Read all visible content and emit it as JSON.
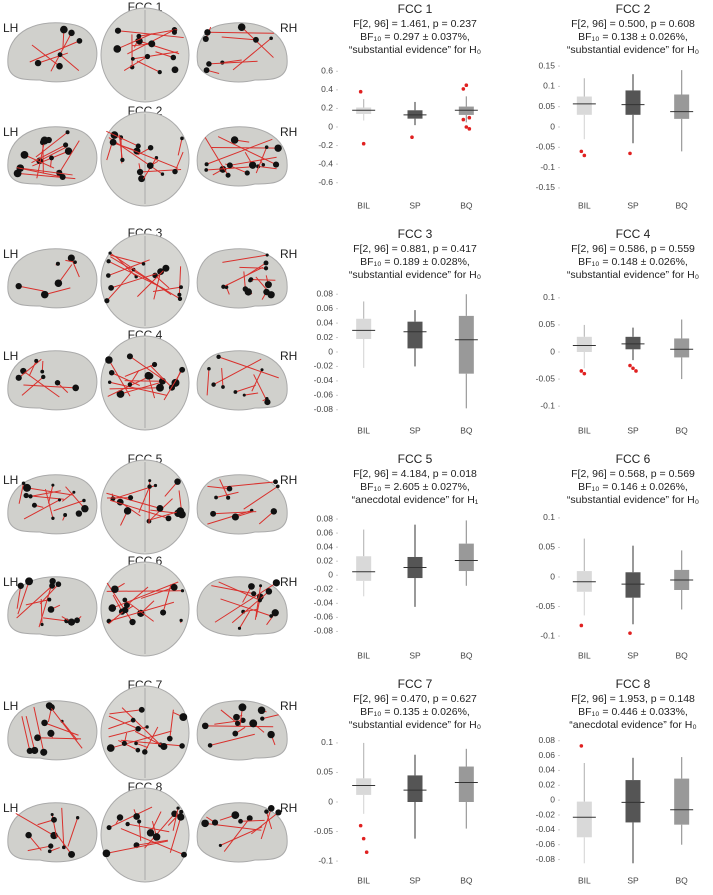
{
  "brain_panels": [
    {
      "title": "FCC 1",
      "left": "LH",
      "right": "RH"
    },
    {
      "title": "FCC 2",
      "left": "LH",
      "right": "RH"
    },
    {
      "title": "FCC 3",
      "left": "LH",
      "right": "RH"
    },
    {
      "title": "FCC 4",
      "left": "LH",
      "right": "RH"
    },
    {
      "title": "FCC 5",
      "left": "LH",
      "right": "RH"
    },
    {
      "title": "FCC 6",
      "left": "LH",
      "right": "RH"
    },
    {
      "title": "FCC 7",
      "left": "LH",
      "right": "RH"
    },
    {
      "title": "FCC 8",
      "left": "LH",
      "right": "RH"
    }
  ],
  "chart_data": [
    {
      "type": "box",
      "title": "FCC 1",
      "subtitle": [
        "F[2, 96] = 1.461, p = 0.237",
        "BF₁₀ = 0.297 ± 0.037%,",
        "“substantial evidence” for H₀"
      ],
      "categories": [
        "BIL",
        "SP",
        "BQ"
      ],
      "colors": [
        "#d9d9d9",
        "#555555",
        "#999999"
      ],
      "outlier_color": "#e02020",
      "boxes": [
        {
          "whisker_low": 0.07,
          "q1": 0.14,
          "median": 0.18,
          "q3": 0.21,
          "whisker_high": 0.3,
          "outliers": [
            0.38,
            -0.18
          ]
        },
        {
          "whisker_low": 0.02,
          "q1": 0.09,
          "median": 0.13,
          "q3": 0.18,
          "whisker_high": 0.27,
          "outliers": [
            -0.11
          ]
        },
        {
          "whisker_low": 0.05,
          "q1": 0.13,
          "median": 0.18,
          "q3": 0.22,
          "whisker_high": 0.33,
          "outliers": [
            0.41,
            0.45,
            0.1,
            0.08,
            0.0,
            -0.02
          ]
        }
      ],
      "ylim": [
        -0.7,
        0.7
      ],
      "yticks": [
        -0.6,
        -0.4,
        -0.2,
        0,
        0.2,
        0.4,
        0.6
      ]
    },
    {
      "type": "box",
      "title": "FCC 2",
      "subtitle": [
        "F[2, 96] = 0.500, p = 0.608",
        "BF₁₀ = 0.138 ± 0.026%,",
        "“substantial evidence” for H₀"
      ],
      "categories": [
        "BIL",
        "SP",
        "BQ"
      ],
      "colors": [
        "#d9d9d9",
        "#555555",
        "#999999"
      ],
      "outlier_color": "#e02020",
      "boxes": [
        {
          "whisker_low": -0.03,
          "q1": 0.03,
          "median": 0.057,
          "q3": 0.075,
          "whisker_high": 0.12,
          "outliers": [
            -0.06,
            -0.07
          ]
        },
        {
          "whisker_low": -0.04,
          "q1": 0.03,
          "median": 0.055,
          "q3": 0.09,
          "whisker_high": 0.13,
          "outliers": [
            -0.065
          ]
        },
        {
          "whisker_low": -0.06,
          "q1": 0.02,
          "median": 0.038,
          "q3": 0.08,
          "whisker_high": 0.14,
          "outliers": []
        }
      ],
      "ylim": [
        -0.16,
        0.16
      ],
      "yticks": [
        -0.15,
        -0.1,
        -0.05,
        0,
        0.05,
        0.1,
        0.15
      ]
    },
    {
      "type": "box",
      "title": "FCC 3",
      "subtitle": [
        "F[2, 96] = 0.881, p = 0.417",
        "BF₁₀ = 0.189 ± 0.028%,",
        "“substantial evidence” for H₀"
      ],
      "categories": [
        "BIL",
        "SP",
        "BQ"
      ],
      "colors": [
        "#d9d9d9",
        "#555555",
        "#999999"
      ],
      "outlier_color": "#e02020",
      "boxes": [
        {
          "whisker_low": -0.022,
          "q1": 0.018,
          "median": 0.03,
          "q3": 0.046,
          "whisker_high": 0.07,
          "outliers": []
        },
        {
          "whisker_low": -0.02,
          "q1": 0.005,
          "median": 0.028,
          "q3": 0.042,
          "whisker_high": 0.058,
          "outliers": []
        },
        {
          "whisker_low": -0.078,
          "q1": -0.03,
          "median": 0.017,
          "q3": 0.05,
          "whisker_high": 0.08,
          "outliers": []
        }
      ],
      "ylim": [
        -0.09,
        0.09
      ],
      "yticks": [
        -0.08,
        -0.06,
        -0.04,
        -0.02,
        0,
        0.02,
        0.04,
        0.06,
        0.08
      ]
    },
    {
      "type": "box",
      "title": "FCC 4",
      "subtitle": [
        "F[2, 96] = 0.586, p = 0.559",
        "BF₁₀ = 0.148 ± 0.026%,",
        "“substantial evidence” for H₀"
      ],
      "categories": [
        "BIL",
        "SP",
        "BQ"
      ],
      "colors": [
        "#d9d9d9",
        "#555555",
        "#999999"
      ],
      "outlier_color": "#e02020",
      "boxes": [
        {
          "whisker_low": -0.03,
          "q1": 0.0,
          "median": 0.012,
          "q3": 0.028,
          "whisker_high": 0.05,
          "outliers": [
            -0.035,
            -0.04
          ]
        },
        {
          "whisker_low": -0.015,
          "q1": 0.005,
          "median": 0.015,
          "q3": 0.028,
          "whisker_high": 0.045,
          "outliers": [
            -0.025,
            -0.03,
            -0.035
          ]
        },
        {
          "whisker_low": -0.05,
          "q1": -0.01,
          "median": 0.005,
          "q3": 0.025,
          "whisker_high": 0.06,
          "outliers": []
        }
      ],
      "ylim": [
        -0.12,
        0.12
      ],
      "yticks": [
        -0.1,
        -0.05,
        0,
        0.05,
        0.1
      ]
    },
    {
      "type": "box",
      "title": "FCC 5",
      "subtitle": [
        "F[2, 96] = 4.184, p = 0.018",
        "BF₁₀ = 2.605 ± 0.027%,",
        "“anecdotal evidence” for H₁"
      ],
      "categories": [
        "BIL",
        "SP",
        "BQ"
      ],
      "colors": [
        "#d9d9d9",
        "#555555",
        "#999999"
      ],
      "outlier_color": "#e02020",
      "boxes": [
        {
          "whisker_low": -0.03,
          "q1": -0.008,
          "median": 0.005,
          "q3": 0.027,
          "whisker_high": 0.065,
          "outliers": []
        },
        {
          "whisker_low": -0.045,
          "q1": -0.004,
          "median": 0.011,
          "q3": 0.026,
          "whisker_high": 0.072,
          "outliers": []
        },
        {
          "whisker_low": -0.015,
          "q1": 0.006,
          "median": 0.021,
          "q3": 0.045,
          "whisker_high": 0.078,
          "outliers": []
        }
      ],
      "ylim": [
        -0.095,
        0.09
      ],
      "yticks": [
        -0.08,
        -0.06,
        -0.04,
        -0.02,
        0,
        0.02,
        0.04,
        0.06,
        0.08
      ]
    },
    {
      "type": "box",
      "title": "FCC 6",
      "subtitle": [
        "F[2, 96] = 0.568, p = 0.569",
        "BF₁₀ = 0.146 ± 0.026%,",
        "“substantial evidence” for H₀"
      ],
      "categories": [
        "BIL",
        "SP",
        "BQ"
      ],
      "colors": [
        "#d9d9d9",
        "#555555",
        "#999999"
      ],
      "outlier_color": "#e02020",
      "boxes": [
        {
          "whisker_low": -0.065,
          "q1": -0.025,
          "median": -0.008,
          "q3": 0.01,
          "whisker_high": 0.065,
          "outliers": [
            -0.082
          ]
        },
        {
          "whisker_low": -0.08,
          "q1": -0.035,
          "median": -0.012,
          "q3": 0.008,
          "whisker_high": 0.053,
          "outliers": [
            -0.095
          ]
        },
        {
          "whisker_low": -0.055,
          "q1": -0.022,
          "median": -0.005,
          "q3": 0.012,
          "whisker_high": 0.045,
          "outliers": []
        }
      ],
      "ylim": [
        -0.11,
        0.11
      ],
      "yticks": [
        -0.1,
        -0.05,
        0,
        0.05,
        0.1
      ]
    },
    {
      "type": "box",
      "title": "FCC 7",
      "subtitle": [
        "F[2, 96] = 0.470, p = 0.627",
        "BF₁₀ = 0.135 ± 0.026%,",
        "“substantial evidence” for H₀"
      ],
      "categories": [
        "BIL",
        "SP",
        "BQ"
      ],
      "colors": [
        "#d9d9d9",
        "#555555",
        "#999999"
      ],
      "outlier_color": "#e02020",
      "boxes": [
        {
          "whisker_low": -0.02,
          "q1": 0.012,
          "median": 0.028,
          "q3": 0.04,
          "whisker_high": 0.1,
          "outliers": [
            -0.04,
            -0.062,
            -0.085
          ]
        },
        {
          "whisker_low": -0.062,
          "q1": 0.0,
          "median": 0.02,
          "q3": 0.045,
          "whisker_high": 0.08,
          "outliers": []
        },
        {
          "whisker_low": -0.045,
          "q1": 0.0,
          "median": 0.033,
          "q3": 0.06,
          "whisker_high": 0.09,
          "outliers": []
        }
      ],
      "ylim": [
        -0.11,
        0.11
      ],
      "yticks": [
        -0.1,
        -0.05,
        0,
        0.05,
        0.1
      ]
    },
    {
      "type": "box",
      "title": "FCC 8",
      "subtitle": [
        "F[2, 96] = 1.953, p = 0.148",
        "BF₁₀ = 0.446 ± 0.033%,",
        "“anecdotal evidence” for H₀"
      ],
      "categories": [
        "BIL",
        "SP",
        "BQ"
      ],
      "colors": [
        "#d9d9d9",
        "#555555",
        "#999999"
      ],
      "outlier_color": "#e02020",
      "boxes": [
        {
          "whisker_low": -0.085,
          "q1": -0.05,
          "median": -0.023,
          "q3": -0.002,
          "whisker_high": 0.05,
          "outliers": [
            0.073
          ]
        },
        {
          "whisker_low": -0.085,
          "q1": -0.03,
          "median": -0.003,
          "q3": 0.027,
          "whisker_high": 0.057,
          "outliers": []
        },
        {
          "whisker_low": -0.06,
          "q1": -0.033,
          "median": -0.013,
          "q3": 0.029,
          "whisker_high": 0.058,
          "outliers": []
        }
      ],
      "ylim": [
        -0.09,
        0.085
      ],
      "yticks": [
        -0.08,
        -0.06,
        -0.04,
        -0.02,
        0,
        0.02,
        0.04,
        0.06,
        0.08
      ]
    }
  ]
}
